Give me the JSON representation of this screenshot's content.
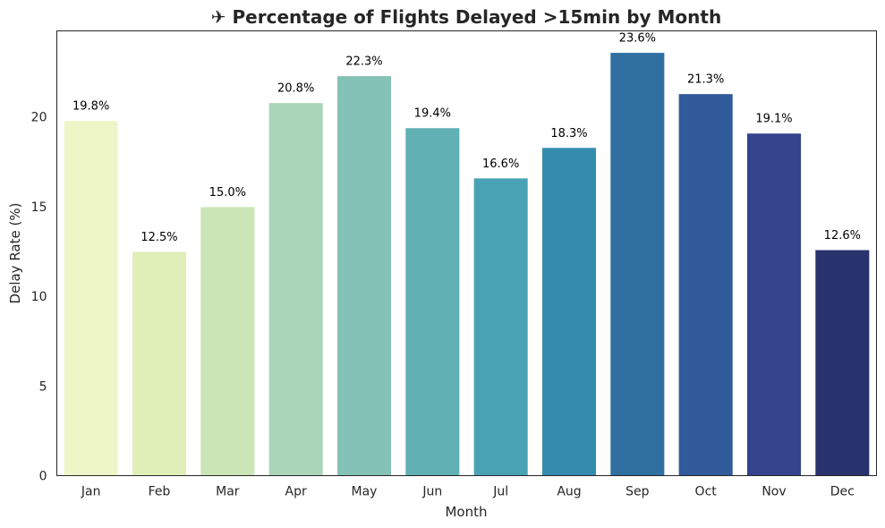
{
  "chart_data": {
    "type": "bar",
    "title": "✈ Percentage of Flights Delayed >15min by Month",
    "xlabel": "Month",
    "ylabel": "Delay Rate (%)",
    "categories": [
      "Jan",
      "Feb",
      "Mar",
      "Apr",
      "May",
      "Jun",
      "Jul",
      "Aug",
      "Sep",
      "Oct",
      "Nov",
      "Dec"
    ],
    "values": [
      19.8,
      12.5,
      15.0,
      20.8,
      22.3,
      19.4,
      16.6,
      18.3,
      23.6,
      21.3,
      19.1,
      12.6
    ],
    "data_labels": [
      "19.8%",
      "12.5%",
      "15.0%",
      "20.8%",
      "22.3%",
      "19.4%",
      "16.6%",
      "18.3%",
      "23.6%",
      "21.3%",
      "19.1%",
      "12.6%"
    ],
    "ylim": [
      0,
      24.8
    ],
    "yticks": [
      0,
      5,
      10,
      15,
      20
    ],
    "ytick_labels": [
      "0",
      "5",
      "10",
      "15",
      "20"
    ],
    "grid": false,
    "legend": "none",
    "colors": [
      "#eef6c8",
      "#e0eeb8",
      "#cbe5b7",
      "#abd5b9",
      "#84c1b6",
      "#60b0b4",
      "#49a2b3",
      "#338cae",
      "#3070a0",
      "#315a9b",
      "#33448d",
      "#28326d"
    ]
  }
}
